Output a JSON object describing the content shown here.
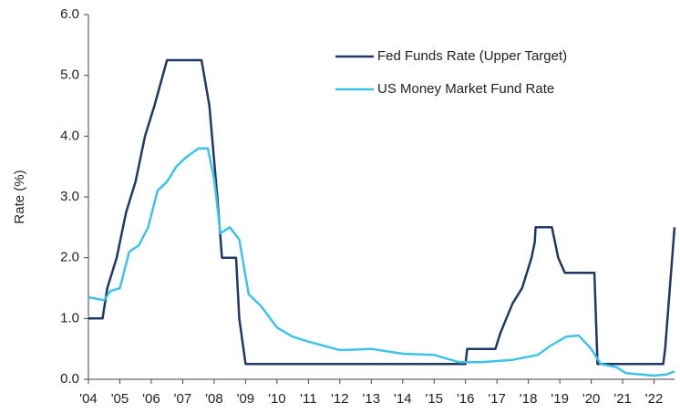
{
  "chart_data": {
    "type": "line",
    "ylabel": "Rate (%)",
    "legend": "top",
    "grid": false,
    "xlim": [
      2004,
      2022.65
    ],
    "ylim": [
      0,
      6
    ],
    "xticks": [
      {
        "value": 2004,
        "label": "'04"
      },
      {
        "value": 2005,
        "label": "'05"
      },
      {
        "value": 2006,
        "label": "'06"
      },
      {
        "value": 2007,
        "label": "'07"
      },
      {
        "value": 2008,
        "label": "'08"
      },
      {
        "value": 2009,
        "label": "'09"
      },
      {
        "value": 2010,
        "label": "'10"
      },
      {
        "value": 2011,
        "label": "'11"
      },
      {
        "value": 2012,
        "label": "'12"
      },
      {
        "value": 2013,
        "label": "'13"
      },
      {
        "value": 2014,
        "label": "'14"
      },
      {
        "value": 2015,
        "label": "'15"
      },
      {
        "value": 2016,
        "label": "'16"
      },
      {
        "value": 2017,
        "label": "'17"
      },
      {
        "value": 2018,
        "label": "'18"
      },
      {
        "value": 2019,
        "label": "'19"
      },
      {
        "value": 2020,
        "label": "'20"
      },
      {
        "value": 2021,
        "label": "'21"
      },
      {
        "value": 2022,
        "label": "'22"
      }
    ],
    "yticks": [
      {
        "value": 0,
        "label": "0.0"
      },
      {
        "value": 1,
        "label": "1.0"
      },
      {
        "value": 2,
        "label": "2.0"
      },
      {
        "value": 3,
        "label": "3.0"
      },
      {
        "value": 4,
        "label": "4.0"
      },
      {
        "value": 5,
        "label": "5.0"
      },
      {
        "value": 6,
        "label": "6.0"
      }
    ],
    "series": [
      {
        "name": "Fed Funds Rate (Upper Target)",
        "color": "#1f3864",
        "x": [
          2004,
          2004.45,
          2004.6,
          2004.9,
          2005.2,
          2005.5,
          2005.8,
          2006.1,
          2006.5,
          2007.6,
          2007.85,
          2008.1,
          2008.25,
          2008.7,
          2008.8,
          2009.0,
          2016.0,
          2016.05,
          2016.95,
          2017.1,
          2017.3,
          2017.5,
          2017.8,
          2017.95,
          2018.1,
          2018.2,
          2018.23,
          2018.75,
          2018.95,
          2019.16,
          2020.1,
          2020.2,
          2022.29,
          2022.35,
          2022.65
        ],
        "values": [
          1.0,
          1.0,
          1.5,
          2.0,
          2.75,
          3.25,
          4.0,
          4.5,
          5.25,
          5.25,
          4.5,
          3.0,
          2.0,
          2.0,
          1.0,
          0.25,
          0.25,
          0.5,
          0.5,
          0.75,
          1.0,
          1.25,
          1.5,
          1.75,
          2.0,
          2.25,
          2.5,
          2.5,
          2.0,
          1.75,
          1.75,
          0.25,
          0.25,
          0.5,
          2.5
        ]
      },
      {
        "name": "US Money Market Fund Rate",
        "color": "#3ec3e8",
        "x": [
          2004,
          2004.5,
          2004.7,
          2005.0,
          2005.3,
          2005.6,
          2005.9,
          2006.2,
          2006.5,
          2006.8,
          2007.1,
          2007.5,
          2007.8,
          2008.0,
          2008.2,
          2008.5,
          2008.8,
          2009.1,
          2009.5,
          2010,
          2010.5,
          2011,
          2012,
          2013,
          2014,
          2015,
          2015.8,
          2016.5,
          2017.5,
          2018.3,
          2018.7,
          2019.2,
          2019.6,
          2020.0,
          2020.3,
          2020.8,
          2021.1,
          2022.0,
          2022.4,
          2022.65
        ],
        "values": [
          1.35,
          1.3,
          1.45,
          1.5,
          2.1,
          2.2,
          2.5,
          3.1,
          3.25,
          3.5,
          3.65,
          3.8,
          3.8,
          3.3,
          2.4,
          2.5,
          2.3,
          1.4,
          1.2,
          0.85,
          0.7,
          0.62,
          0.48,
          0.5,
          0.42,
          0.4,
          0.28,
          0.28,
          0.32,
          0.4,
          0.55,
          0.7,
          0.72,
          0.5,
          0.25,
          0.2,
          0.1,
          0.06,
          0.08,
          0.13
        ]
      }
    ]
  }
}
